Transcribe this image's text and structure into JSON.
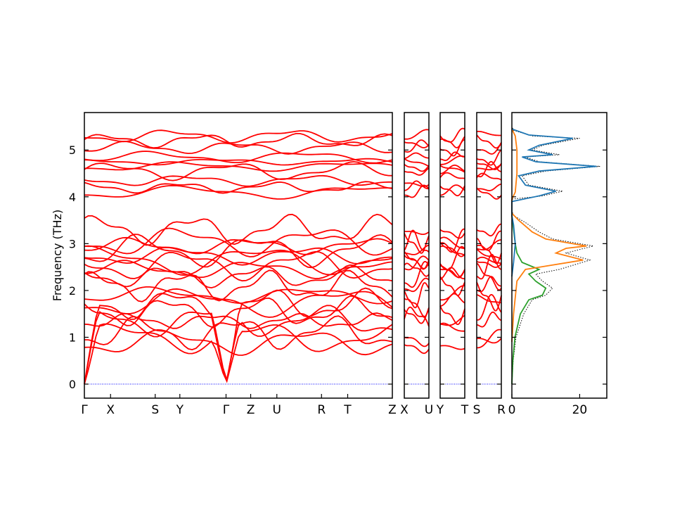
{
  "chart_data": {
    "type": "line",
    "title": "",
    "ylabel": "Frequency (THz)",
    "ylim": [
      -0.3,
      5.8
    ],
    "yticks": [
      0,
      1,
      2,
      3,
      4,
      5
    ],
    "band_colors": {
      "bands": "#ff0000",
      "zero_line": "#0000ff"
    },
    "panels": [
      {
        "name": "band-panel-main",
        "labels": [
          "Γ",
          "X",
          "S",
          "Y",
          "Γ",
          "Z",
          "U",
          "R",
          "T",
          "Z"
        ],
        "label_positions": [
          0,
          0.085,
          0.23,
          0.31,
          0.46,
          0.54,
          0.625,
          0.77,
          0.855,
          1.0
        ]
      },
      {
        "name": "band-panel-2",
        "labels": [
          "X",
          "U"
        ],
        "label_positions": [
          0,
          1
        ]
      },
      {
        "name": "band-panel-3",
        "labels": [
          "Y",
          "T"
        ],
        "label_positions": [
          0,
          1
        ]
      },
      {
        "name": "band-panel-4",
        "labels": [
          "S",
          "R"
        ],
        "label_positions": [
          0,
          1
        ]
      }
    ],
    "dos": {
      "xlim": [
        0,
        28
      ],
      "xticks": [
        0,
        20
      ],
      "series": [
        {
          "color": "#000000",
          "style": "dotted",
          "points": [
            [
              0,
              0
            ],
            [
              0.4,
              0.5
            ],
            [
              1.2,
              1.0
            ],
            [
              3.5,
              1.5
            ],
            [
              6,
              1.8
            ],
            [
              10,
              1.9
            ],
            [
              12,
              2.05
            ],
            [
              9,
              2.2
            ],
            [
              7,
              2.35
            ],
            [
              14,
              2.45
            ],
            [
              23,
              2.65
            ],
            [
              16,
              2.8
            ],
            [
              24,
              2.95
            ],
            [
              12,
              3.1
            ],
            [
              8,
              3.25
            ],
            [
              4,
              3.45
            ],
            [
              0.5,
              3.6
            ],
            [
              0,
              3.7
            ],
            [
              0,
              3.95
            ],
            [
              9,
              4.02
            ],
            [
              15,
              4.12
            ],
            [
              5,
              4.25
            ],
            [
              3,
              4.45
            ],
            [
              10,
              4.55
            ],
            [
              26,
              4.65
            ],
            [
              8,
              4.75
            ],
            [
              4,
              4.85
            ],
            [
              14,
              4.9
            ],
            [
              6,
              5.0
            ],
            [
              9,
              5.1
            ],
            [
              20,
              5.25
            ],
            [
              6,
              5.3
            ],
            [
              0.5,
              5.42
            ],
            [
              0,
              5.5
            ]
          ]
        },
        {
          "color": "#2ca02c",
          "style": "solid",
          "points": [
            [
              0,
              0
            ],
            [
              0.3,
              0.5
            ],
            [
              0.9,
              1.0
            ],
            [
              2.5,
              1.5
            ],
            [
              5,
              1.8
            ],
            [
              9,
              1.9
            ],
            [
              10,
              2.05
            ],
            [
              7,
              2.2
            ],
            [
              5,
              2.35
            ],
            [
              8,
              2.45
            ],
            [
              3,
              2.6
            ],
            [
              1.5,
              2.8
            ],
            [
              1,
              3.0
            ],
            [
              0.5,
              3.3
            ],
            [
              0,
              3.6
            ]
          ]
        },
        {
          "color": "#ff7f0e",
          "style": "solid",
          "points": [
            [
              0,
              0.9
            ],
            [
              0.5,
              1.5
            ],
            [
              1.5,
              2.2
            ],
            [
              4,
              2.45
            ],
            [
              21,
              2.65
            ],
            [
              13,
              2.8
            ],
            [
              16,
              2.9
            ],
            [
              22,
              2.95
            ],
            [
              10,
              3.1
            ],
            [
              6,
              3.25
            ],
            [
              2,
              3.5
            ],
            [
              0,
              3.65
            ],
            [
              0,
              3.95
            ],
            [
              1,
              4.1
            ],
            [
              1.5,
              4.5
            ],
            [
              1.5,
              5.0
            ],
            [
              1,
              5.3
            ],
            [
              0,
              5.45
            ]
          ]
        },
        {
          "color": "#1f77b4",
          "style": "solid",
          "points": [
            [
              0,
              2.3
            ],
            [
              0.5,
              2.6
            ],
            [
              1.0,
              3.0
            ],
            [
              0.5,
              3.4
            ],
            [
              0,
              3.6
            ],
            [
              0,
              3.9
            ],
            [
              8,
              4.02
            ],
            [
              13,
              4.12
            ],
            [
              4,
              4.25
            ],
            [
              2,
              4.45
            ],
            [
              8,
              4.55
            ],
            [
              25,
              4.65
            ],
            [
              7,
              4.75
            ],
            [
              3,
              4.85
            ],
            [
              12,
              4.9
            ],
            [
              5,
              5.0
            ],
            [
              8,
              5.1
            ],
            [
              18,
              5.25
            ],
            [
              5,
              5.32
            ],
            [
              0,
              5.45
            ]
          ]
        }
      ]
    }
  }
}
